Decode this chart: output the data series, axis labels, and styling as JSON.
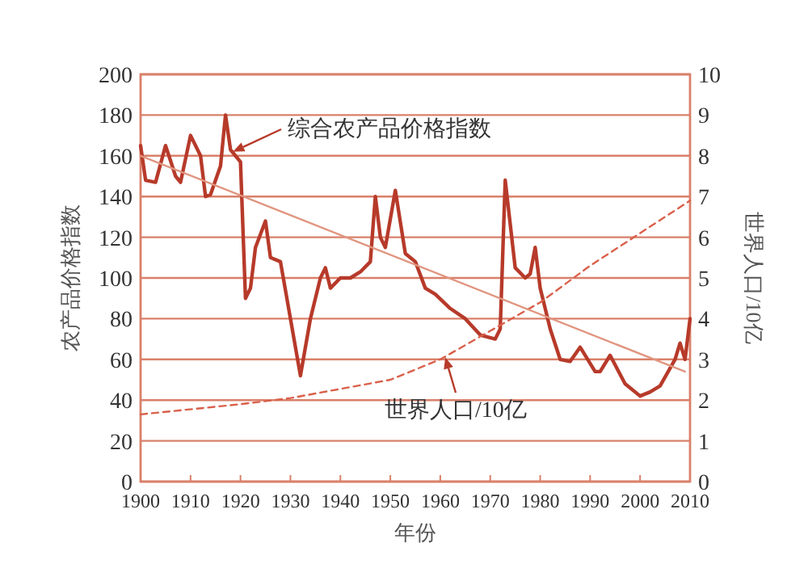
{
  "chart_data": {
    "type": "line",
    "xlabel": "年份",
    "ylabel": "农产品价格指数",
    "y2label": "世界人口/10亿",
    "xlim": [
      1900,
      2010
    ],
    "xticks": [
      1900,
      1910,
      1920,
      1930,
      1940,
      1950,
      1960,
      1970,
      1980,
      1990,
      2000,
      2010
    ],
    "ylim": [
      0,
      200
    ],
    "yticks": [
      0,
      20,
      40,
      60,
      80,
      100,
      120,
      140,
      160,
      180,
      200
    ],
    "y2lim": [
      0,
      10
    ],
    "y2ticks": [
      0,
      1,
      2,
      3,
      4,
      5,
      6,
      7,
      8,
      9,
      10
    ],
    "grid": "y",
    "marker": "none",
    "annotations": [
      {
        "text": "综合农产品价格指数",
        "x": 1918.5,
        "y": 162
      },
      {
        "text": "世界人口/10亿",
        "x": 1961,
        "y": 61
      }
    ],
    "series": [
      {
        "color": "#b73a2a",
        "line_style": "solid",
        "x": [
          1900,
          1901,
          1903,
          1905,
          1907,
          1908,
          1910,
          1912,
          1913,
          1914,
          1916,
          1917,
          1918,
          1920,
          1921,
          1922,
          1923,
          1925,
          1926,
          1928,
          1930,
          1932,
          1934,
          1936,
          1937,
          1938,
          1940,
          1942,
          1944,
          1946,
          1947,
          1948,
          1949,
          1951,
          1953,
          1955,
          1957,
          1959,
          1962,
          1965,
          1968,
          1971,
          1972,
          1973,
          1975,
          1977,
          1978,
          1979,
          1980,
          1982,
          1984,
          1986,
          1988,
          1991,
          1992,
          1994,
          1997,
          2000,
          2002,
          2004,
          2007,
          2008,
          2009,
          2010
        ],
        "values": [
          165,
          148,
          147,
          165,
          150,
          147,
          170,
          160,
          140,
          141,
          155,
          180,
          163,
          157,
          90,
          95,
          115,
          128,
          110,
          108,
          80,
          52,
          80,
          100,
          105,
          95,
          100,
          100,
          103,
          108,
          140,
          120,
          115,
          143,
          112,
          108,
          95,
          92,
          85,
          80,
          72,
          70,
          75,
          148,
          105,
          100,
          102,
          115,
          95,
          75,
          60,
          59,
          66,
          54,
          54,
          62,
          48,
          42,
          44,
          47,
          60,
          68,
          60,
          80
        ]
      },
      {
        "color": "#d9604a",
        "line_style": "dashed",
        "axis": "y2",
        "x": [
          1900,
          1920,
          1930,
          1950,
          1960,
          1970,
          1980,
          1990,
          2000,
          2010
        ],
        "values": [
          1.65,
          1.9,
          2.05,
          2.5,
          3.0,
          3.7,
          4.4,
          5.3,
          6.1,
          6.9
        ]
      },
      {
        "type": "line",
        "color": "#e0957f",
        "line_style": "solid",
        "x": [
          1900,
          2009
        ],
        "values": [
          160,
          54
        ]
      }
    ]
  }
}
